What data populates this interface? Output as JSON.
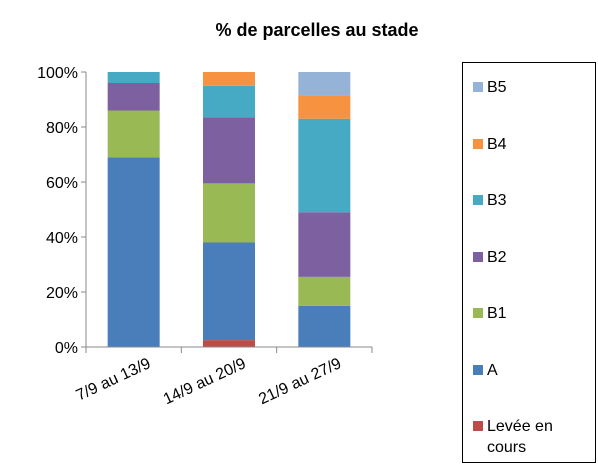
{
  "chart_data": {
    "type": "stacked_bar",
    "title": "% de parcelles au stade",
    "categories": [
      "7/9 au 13/9",
      "14/9 au 20/9",
      "21/9 au 27/9"
    ],
    "series": [
      {
        "name": "Levée en cours",
        "color": "#be4b48",
        "values": [
          0,
          2.5,
          0
        ]
      },
      {
        "name": "A",
        "color": "#4a7ebb",
        "values": [
          69,
          35.5,
          15
        ]
      },
      {
        "name": "B1",
        "color": "#98b954",
        "values": [
          17,
          21.5,
          10.5
        ]
      },
      {
        "name": "B2",
        "color": "#7d60a0",
        "values": [
          10,
          24,
          23.5
        ]
      },
      {
        "name": "B3",
        "color": "#46aac5",
        "values": [
          4,
          11.5,
          34
        ]
      },
      {
        "name": "B4",
        "color": "#f69240",
        "values": [
          0,
          5,
          8.5
        ]
      },
      {
        "name": "B5",
        "color": "#95b3d7",
        "values": [
          0,
          0,
          8.5
        ]
      }
    ],
    "ylim": [
      0,
      100
    ],
    "yticks": [
      {
        "value": 0,
        "label": "0%"
      },
      {
        "value": 20,
        "label": "20%"
      },
      {
        "value": 40,
        "label": "40%"
      },
      {
        "value": 60,
        "label": "60%"
      },
      {
        "value": 80,
        "label": "80%"
      },
      {
        "value": 100,
        "label": "100%"
      }
    ],
    "grid": false,
    "legend": "right"
  }
}
